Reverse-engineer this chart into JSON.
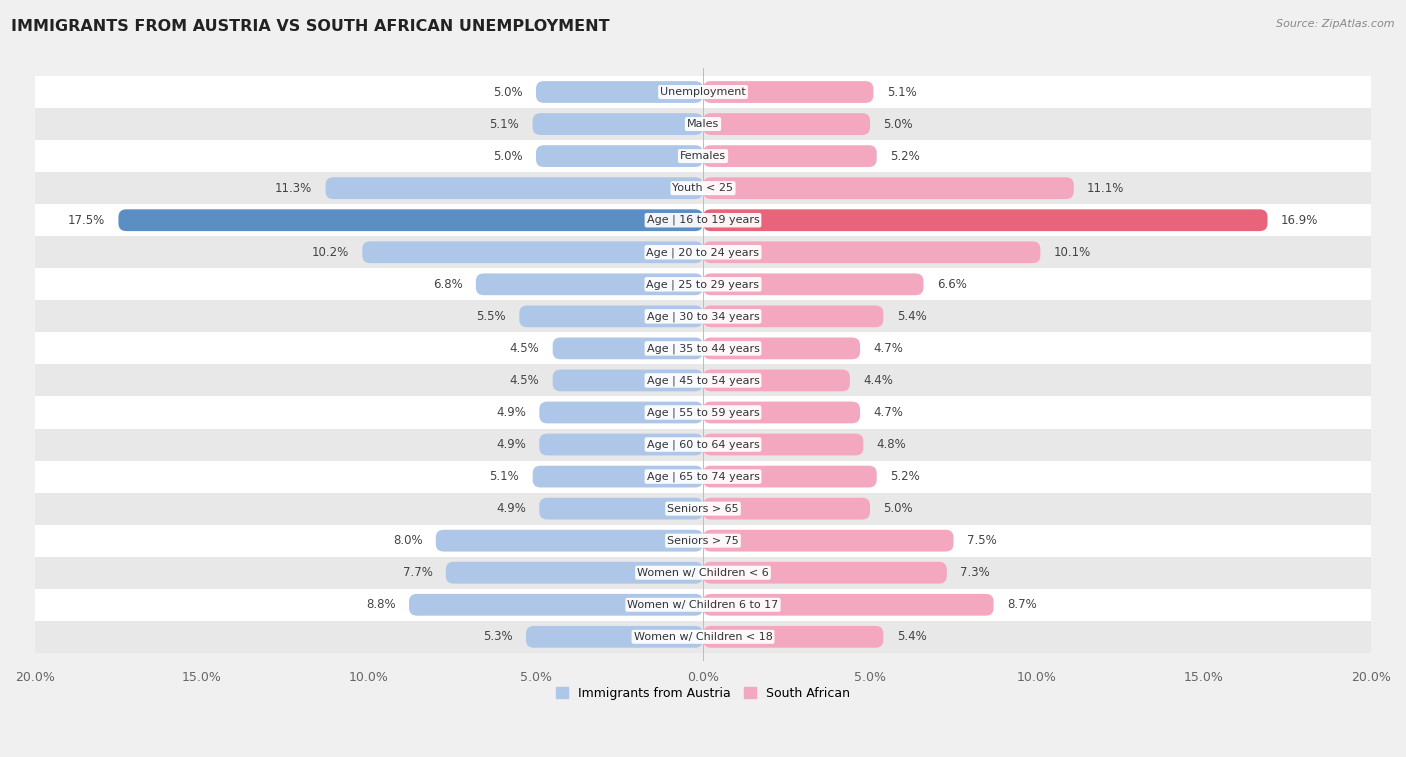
{
  "title": "IMMIGRANTS FROM AUSTRIA VS SOUTH AFRICAN UNEMPLOYMENT",
  "source": "Source: ZipAtlas.com",
  "categories": [
    "Unemployment",
    "Males",
    "Females",
    "Youth < 25",
    "Age | 16 to 19 years",
    "Age | 20 to 24 years",
    "Age | 25 to 29 years",
    "Age | 30 to 34 years",
    "Age | 35 to 44 years",
    "Age | 45 to 54 years",
    "Age | 55 to 59 years",
    "Age | 60 to 64 years",
    "Age | 65 to 74 years",
    "Seniors > 65",
    "Seniors > 75",
    "Women w/ Children < 6",
    "Women w/ Children 6 to 17",
    "Women w/ Children < 18"
  ],
  "left_values": [
    5.0,
    5.1,
    5.0,
    11.3,
    17.5,
    10.2,
    6.8,
    5.5,
    4.5,
    4.5,
    4.9,
    4.9,
    5.1,
    4.9,
    8.0,
    7.7,
    8.8,
    5.3
  ],
  "right_values": [
    5.1,
    5.0,
    5.2,
    11.1,
    16.9,
    10.1,
    6.6,
    5.4,
    4.7,
    4.4,
    4.7,
    4.8,
    5.2,
    5.0,
    7.5,
    7.3,
    8.7,
    5.4
  ],
  "left_color": "#aec6e8",
  "right_color": "#f4a8c0",
  "highlight_left_color": "#5b8ec4",
  "highlight_right_color": "#e8647a",
  "highlight_index": 4,
  "axis_max": 20.0,
  "bar_height": 0.68,
  "legend_left": "Immigrants from Austria",
  "legend_right": "South African",
  "tick_label_color": "#666666",
  "fig_bg": "#f0f0f0",
  "row_colors": [
    "#ffffff",
    "#e8e8e8"
  ]
}
